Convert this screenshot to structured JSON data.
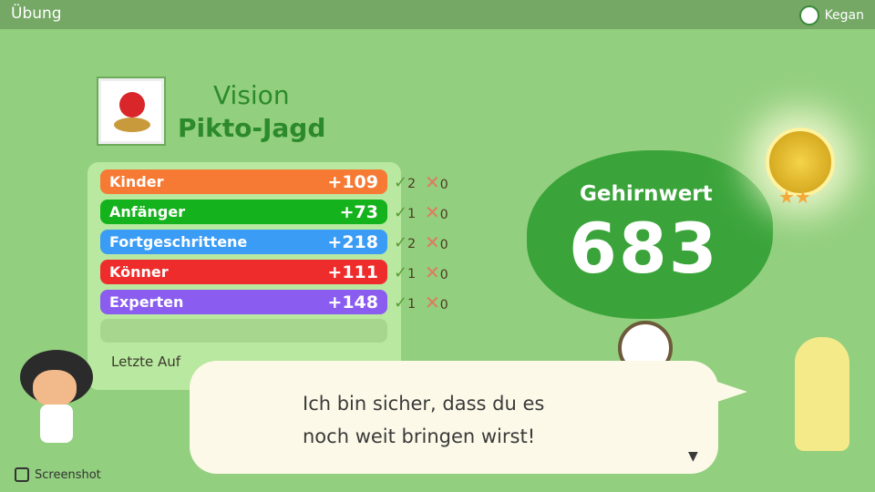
{
  "header": {
    "title": "Übung",
    "user": "Kegan"
  },
  "game": {
    "category": "Vision",
    "name": "Pikto-Jagd"
  },
  "results": [
    {
      "label": "Kinder",
      "points": "+109",
      "correct": "2",
      "wrong": "0",
      "color": "#f67a33"
    },
    {
      "label": "Anfänger",
      "points": "+73",
      "correct": "1",
      "wrong": "0",
      "color": "#14b21c"
    },
    {
      "label": "Fortgeschrittene",
      "points": "+218",
      "correct": "2",
      "wrong": "0",
      "color": "#3b9cf5"
    },
    {
      "label": "Könner",
      "points": "+111",
      "correct": "1",
      "wrong": "0",
      "color": "#ef2c2c"
    },
    {
      "label": "Experten",
      "points": "+148",
      "correct": "1",
      "wrong": "0",
      "color": "#8a5cf0"
    }
  ],
  "last_label": "Letzte Auf",
  "brain": {
    "label": "Gehirnwert",
    "value": "683",
    "stars": "★★"
  },
  "dialog": {
    "line1": "Ich bin sicher, dass du es",
    "line2": "noch weit bringen wirst!",
    "more": "▼"
  },
  "footer": {
    "screenshot": "Screenshot"
  }
}
